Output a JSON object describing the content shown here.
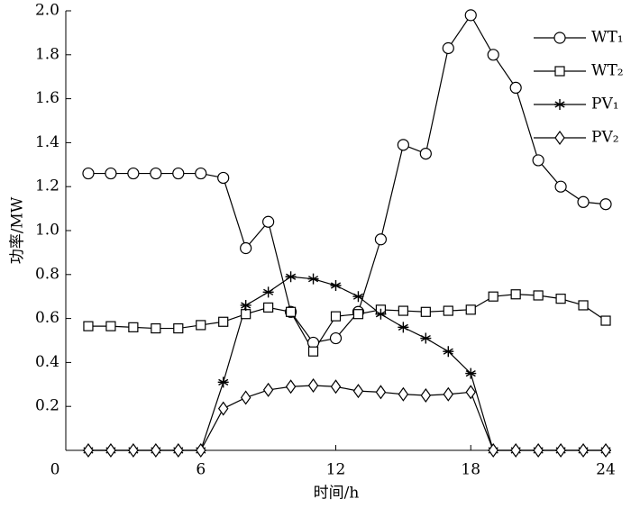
{
  "chart_data": {
    "type": "line",
    "xlabel": "时间/h",
    "ylabel": "功率/MW",
    "x": [
      1,
      2,
      3,
      4,
      5,
      6,
      7,
      8,
      9,
      10,
      11,
      12,
      13,
      14,
      15,
      16,
      17,
      18,
      19,
      20,
      21,
      22,
      23,
      24
    ],
    "xlim": [
      0,
      24
    ],
    "xticks": [
      0,
      6,
      12,
      18,
      24
    ],
    "ylim": [
      0,
      2
    ],
    "yticks": [
      0.2,
      0.4,
      0.6,
      0.8,
      {
        "value": 1,
        "label": "1.0"
      },
      1.2,
      1.4,
      1.6,
      1.8,
      {
        "value": 2,
        "label": "2.0"
      }
    ],
    "legend": "upper right",
    "series": [
      {
        "name": "WT₁",
        "color": "#000000",
        "marker": "circle",
        "values": [
          1.26,
          1.26,
          1.26,
          1.26,
          1.26,
          1.26,
          1.24,
          0.92,
          1.04,
          0.63,
          0.49,
          0.51,
          0.63,
          0.96,
          1.39,
          1.35,
          1.83,
          1.98,
          1.8,
          1.65,
          1.32,
          1.2,
          1.13,
          1.12
        ]
      },
      {
        "name": "WT₂",
        "color": "#000000",
        "marker": "square",
        "values": [
          0.565,
          0.565,
          0.56,
          0.555,
          0.555,
          0.57,
          0.585,
          0.62,
          0.65,
          0.63,
          0.45,
          0.61,
          0.62,
          0.64,
          0.635,
          0.63,
          0.635,
          0.64,
          0.7,
          0.71,
          0.705,
          0.69,
          0.66,
          0.59
        ]
      },
      {
        "name": "PV₁",
        "color": "#000000",
        "marker": "asterisk",
        "values": [
          0,
          0,
          0,
          0,
          0,
          0,
          0.31,
          0.66,
          0.72,
          0.79,
          0.78,
          0.75,
          0.7,
          0.62,
          0.56,
          0.51,
          0.45,
          0.35,
          0,
          0,
          0,
          0,
          0,
          0
        ]
      },
      {
        "name": "PV₂",
        "color": "#000000",
        "marker": "diamond",
        "values": [
          0,
          0,
          0,
          0,
          0,
          0,
          0.19,
          0.24,
          0.275,
          0.29,
          0.295,
          0.29,
          0.27,
          0.265,
          0.255,
          0.25,
          0.255,
          0.265,
          0,
          0,
          0,
          0,
          0,
          0
        ]
      }
    ]
  }
}
